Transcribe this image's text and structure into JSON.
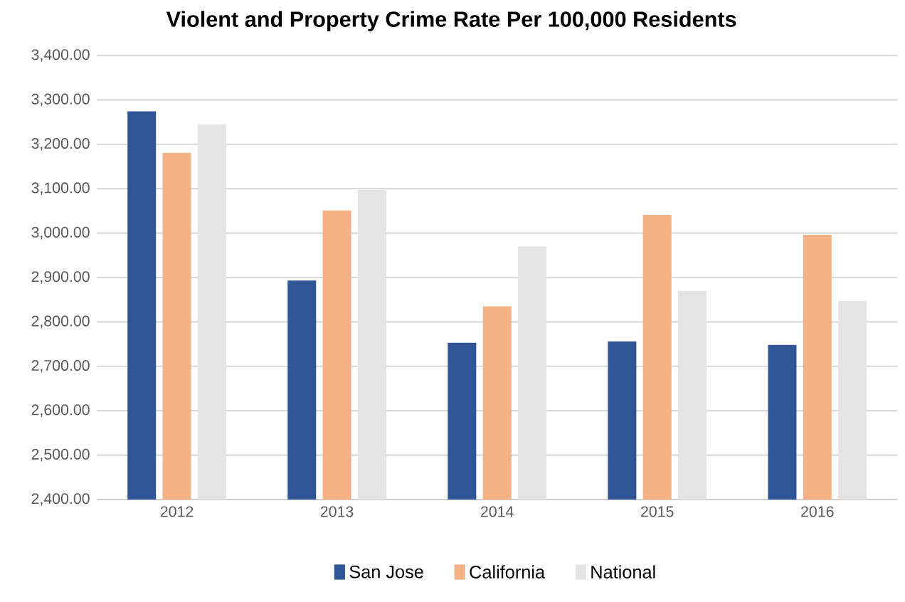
{
  "chart_data": {
    "type": "bar",
    "title": "Violent and Property Crime Rate Per 100,000 Residents",
    "categories": [
      "2012",
      "2013",
      "2014",
      "2015",
      "2016"
    ],
    "series": [
      {
        "name": "San Jose",
        "color": "#2f5597",
        "values": [
          3274,
          2893,
          2753,
          2756,
          2748
        ]
      },
      {
        "name": "California",
        "color": "#f4b183",
        "values": [
          3181,
          3051,
          2835,
          3041,
          2996
        ]
      },
      {
        "name": "National",
        "color": "#e4e4e4",
        "values": [
          3245,
          3097,
          2970,
          2870,
          2847
        ]
      }
    ],
    "ylim": [
      2400,
      3400
    ],
    "yticks": [
      {
        "value": 2400,
        "label": "2,400.00"
      },
      {
        "value": 2500,
        "label": "2,500.00"
      },
      {
        "value": 2600,
        "label": "2,600.00"
      },
      {
        "value": 2700,
        "label": "2,700.00"
      },
      {
        "value": 2800,
        "label": "2,800.00"
      },
      {
        "value": 2900,
        "label": "2,900.00"
      },
      {
        "value": 3000,
        "label": "3,000.00"
      },
      {
        "value": 3100,
        "label": "3,100.00"
      },
      {
        "value": 3200,
        "label": "3,200.00"
      },
      {
        "value": 3300,
        "label": "3,300.00"
      },
      {
        "value": 3400,
        "label": "3,400.00"
      }
    ],
    "grid": "y",
    "legend": "bottom"
  }
}
